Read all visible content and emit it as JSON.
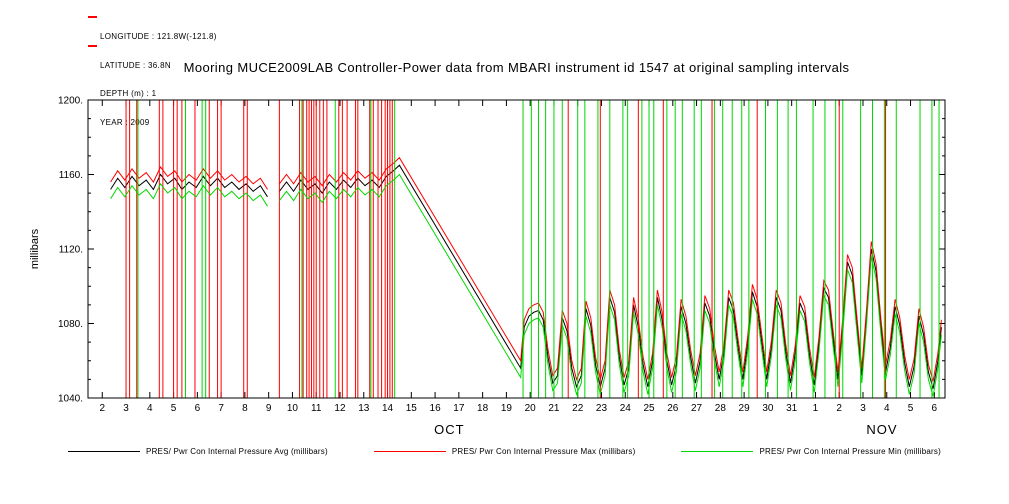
{
  "header": {
    "info_lines": [
      "LONGITUDE : 121.8W(-121.8)",
      "LATITUDE : 36.8N",
      "DEPTH (m) : 1",
      "YEAR : 2009"
    ]
  },
  "colors": {
    "marker_red": "#ff0000"
  },
  "chart_data": {
    "type": "line",
    "title": "Mooring MUCE2009LAB Controller-Power data from MBARI instrument id 1547 at original sampling intervals",
    "xlabel": "",
    "ylabel": "millibars",
    "ylim": [
      1040,
      1200
    ],
    "xlim": [
      1.4,
      37.45
    ],
    "grid": false,
    "legend_position": "bottom",
    "y_tick_values": [
      1040,
      1080,
      1120,
      1160,
      1200
    ],
    "y_tick_labels": [
      "1040.",
      "1080.",
      "1120.",
      "1160.",
      "1200."
    ],
    "y_minor_step": 10,
    "x_tick_values": [
      2,
      3,
      4,
      5,
      6,
      7,
      8,
      9,
      10,
      11,
      12,
      13,
      14,
      15,
      16,
      17,
      18,
      19,
      20,
      21,
      22,
      23,
      24,
      25,
      26,
      27,
      28,
      29,
      30,
      31,
      32,
      33,
      34,
      35,
      36,
      37
    ],
    "x_tick_labels": [
      "2",
      "3",
      "4",
      "5",
      "6",
      "7",
      "8",
      "9",
      "10",
      "11",
      "12",
      "13",
      "14",
      "15",
      "16",
      "17",
      "18",
      "19",
      "20",
      "21",
      "22",
      "23",
      "24",
      "25",
      "26",
      "27",
      "28",
      "29",
      "30",
      "31",
      "1",
      "2",
      "3",
      "4",
      "5",
      "6"
    ],
    "month_labels": [
      {
        "x": 16.6,
        "label": "OCT"
      },
      {
        "x": 34.8,
        "label": "NOV"
      }
    ],
    "x": [
      2.35,
      2.65,
      2.95,
      3.25,
      3.55,
      3.85,
      4.15,
      4.45,
      4.75,
      5.05,
      5.35,
      5.65,
      5.95,
      6.25,
      6.55,
      6.85,
      7.15,
      7.45,
      7.75,
      8.05,
      8.35,
      8.65,
      8.95,
      9.2,
      9.45,
      9.75,
      10.05,
      10.35,
      10.65,
      10.95,
      11.25,
      11.55,
      11.85,
      12.15,
      12.45,
      12.75,
      13.05,
      13.35,
      13.65,
      13.95,
      14.25,
      14.5,
      19.6,
      19.75,
      19.95,
      20.15,
      20.35,
      20.55,
      20.75,
      20.95,
      21.15,
      21.35,
      21.55,
      21.75,
      21.95,
      22.15,
      22.35,
      22.55,
      22.75,
      22.95,
      23.15,
      23.35,
      23.55,
      23.75,
      23.95,
      24.15,
      24.35,
      24.55,
      24.75,
      24.95,
      25.15,
      25.35,
      25.55,
      25.75,
      25.95,
      26.15,
      26.35,
      26.55,
      26.75,
      26.95,
      27.15,
      27.35,
      27.55,
      27.75,
      27.95,
      28.15,
      28.35,
      28.55,
      28.75,
      28.95,
      29.15,
      29.35,
      29.55,
      29.75,
      29.95,
      30.15,
      30.35,
      30.55,
      30.75,
      30.95,
      31.15,
      31.35,
      31.55,
      31.75,
      31.95,
      32.15,
      32.35,
      32.55,
      32.75,
      32.95,
      33.15,
      33.35,
      33.55,
      33.75,
      33.95,
      34.15,
      34.35,
      34.55,
      34.75,
      34.95,
      35.15,
      35.35,
      35.55,
      35.75,
      35.95,
      36.15,
      36.35,
      36.55,
      36.75,
      36.95,
      37.15,
      37.3
    ],
    "series": [
      {
        "name": "PRES/ Pwr Con Internal Pressure Avg (millibars)",
        "color": "#000000",
        "spike_x": [],
        "y": [
          1152,
          1158,
          1153,
          1159,
          1154,
          1157,
          1152,
          1160,
          1155,
          1158,
          1152,
          1156,
          1153,
          1159,
          1154,
          1158,
          1153,
          1156,
          1152,
          1155,
          1151,
          1154,
          1148,
          null,
          1151,
          1156,
          1151,
          1157,
          1152,
          1155,
          1150,
          1156,
          1152,
          1157,
          1153,
          1158,
          1154,
          1157,
          1153,
          1159,
          1162,
          1165,
          1056,
          1078,
          1084,
          1086,
          1087,
          1082,
          1062,
          1048,
          1052,
          1083,
          1076,
          1056,
          1046,
          1052,
          1088,
          1079,
          1058,
          1046,
          1056,
          1094,
          1086,
          1062,
          1047,
          1056,
          1090,
          1078,
          1058,
          1046,
          1060,
          1094,
          1082,
          1060,
          1047,
          1058,
          1089,
          1080,
          1062,
          1048,
          1060,
          1091,
          1084,
          1064,
          1050,
          1064,
          1094,
          1087,
          1067,
          1050,
          1069,
          1097,
          1089,
          1069,
          1050,
          1067,
          1094,
          1087,
          1065,
          1048,
          1064,
          1091,
          1085,
          1063,
          1047,
          1069,
          1099,
          1094,
          1071,
          1050,
          1079,
          1113,
          1106,
          1079,
          1052,
          1084,
          1120,
          1108,
          1079,
          1054,
          1067,
          1089,
          1079,
          1059,
          1046,
          1057,
          1084,
          1074,
          1054,
          1045,
          1060,
          1078
        ]
      },
      {
        "name": "PRES/ Pwr Con Internal Pressure Max (millibars)",
        "color": "#ff0000",
        "spike_x": [
          3.0,
          3.15,
          3.45,
          4.4,
          4.55,
          5.0,
          5.15,
          5.35,
          5.9,
          6.5,
          6.85,
          7.0,
          7.95,
          8.1,
          9.45,
          10.3,
          10.45,
          10.6,
          10.7,
          10.8,
          10.9,
          11.0,
          11.15,
          11.3,
          11.45,
          11.95,
          12.1,
          12.3,
          12.65,
          12.75,
          13.25,
          13.4,
          13.6,
          13.75,
          13.9,
          14.0,
          14.1,
          14.2,
          21.6,
          22.95,
          24.55,
          25.6,
          27.65,
          29.55,
          33.0,
          34.95
        ],
        "y": [
          1156,
          1162,
          1157,
          1163,
          1158,
          1161,
          1156,
          1164,
          1159,
          1162,
          1156,
          1160,
          1157,
          1163,
          1158,
          1162,
          1157,
          1160,
          1156,
          1159,
          1155,
          1158,
          1152,
          null,
          1155,
          1160,
          1155,
          1161,
          1156,
          1159,
          1154,
          1160,
          1156,
          1161,
          1157,
          1162,
          1158,
          1161,
          1157,
          1163,
          1166,
          1169,
          1060,
          1082,
          1088,
          1090,
          1091,
          1086,
          1066,
          1052,
          1056,
          1087,
          1080,
          1060,
          1050,
          1056,
          1092,
          1083,
          1062,
          1050,
          1060,
          1098,
          1090,
          1066,
          1051,
          1060,
          1094,
          1082,
          1062,
          1050,
          1064,
          1098,
          1086,
          1064,
          1051,
          1062,
          1093,
          1084,
          1066,
          1052,
          1064,
          1095,
          1088,
          1068,
          1054,
          1068,
          1098,
          1091,
          1071,
          1054,
          1073,
          1101,
          1093,
          1073,
          1054,
          1071,
          1098,
          1091,
          1069,
          1052,
          1068,
          1095,
          1089,
          1067,
          1051,
          1073,
          1103,
          1098,
          1075,
          1054,
          1083,
          1117,
          1110,
          1083,
          1056,
          1088,
          1124,
          1112,
          1083,
          1058,
          1071,
          1093,
          1083,
          1063,
          1050,
          1061,
          1088,
          1078,
          1058,
          1049,
          1064,
          1082
        ]
      },
      {
        "name": "PRES/ Pwr Con Internal Pressure Min (millibars)",
        "color": "#00d800",
        "spike_x": [
          3.5,
          5.5,
          6.2,
          6.35,
          10.4,
          11.8,
          13.3,
          14.3,
          19.7,
          20.05,
          20.35,
          20.65,
          21.0,
          21.35,
          22.0,
          22.3,
          22.85,
          23.35,
          23.9,
          24.1,
          24.7,
          25.0,
          25.2,
          25.75,
          26.1,
          26.4,
          26.9,
          27.2,
          27.75,
          28.1,
          28.5,
          28.9,
          29.2,
          29.9,
          30.4,
          30.85,
          31.2,
          31.9,
          32.4,
          32.85,
          33.15,
          33.9,
          34.4,
          34.9,
          35.4,
          36.4,
          36.9,
          37.2
        ],
        "y": [
          1147,
          1153,
          1148,
          1154,
          1149,
          1152,
          1147,
          1155,
          1150,
          1153,
          1147,
          1151,
          1148,
          1154,
          1149,
          1153,
          1148,
          1151,
          1147,
          1150,
          1146,
          1149,
          1143,
          null,
          1146,
          1151,
          1146,
          1152,
          1147,
          1150,
          1145,
          1151,
          1147,
          1152,
          1148,
          1153,
          1149,
          1152,
          1148,
          1154,
          1157,
          1160,
          1051,
          1074,
          1080,
          1082,
          1083,
          1078,
          1058,
          1044,
          1048,
          1079,
          1072,
          1052,
          1042,
          1048,
          1084,
          1075,
          1054,
          1042,
          1052,
          1090,
          1082,
          1058,
          1043,
          1052,
          1086,
          1074,
          1054,
          1042,
          1056,
          1090,
          1078,
          1056,
          1043,
          1054,
          1085,
          1076,
          1058,
          1044,
          1056,
          1087,
          1080,
          1060,
          1046,
          1060,
          1090,
          1083,
          1063,
          1046,
          1065,
          1093,
          1085,
          1065,
          1046,
          1063,
          1090,
          1083,
          1061,
          1044,
          1060,
          1087,
          1081,
          1059,
          1043,
          1065,
          1095,
          1090,
          1067,
          1046,
          1075,
          1109,
          1102,
          1075,
          1048,
          1080,
          1116,
          1104,
          1075,
          1050,
          1063,
          1085,
          1075,
          1055,
          1042,
          1053,
          1080,
          1070,
          1050,
          1041,
          1056,
          1074
        ]
      }
    ]
  },
  "legend": {
    "entries": [
      {
        "label": "PRES/ Pwr Con Internal Pressure Avg (millibars)",
        "color": "#000000"
      },
      {
        "label": "PRES/ Pwr Con Internal Pressure Max (millibars)",
        "color": "#ff0000"
      },
      {
        "label": "PRES/ Pwr Con Internal Pressure Min (millibars)",
        "color": "#00d800"
      }
    ]
  }
}
